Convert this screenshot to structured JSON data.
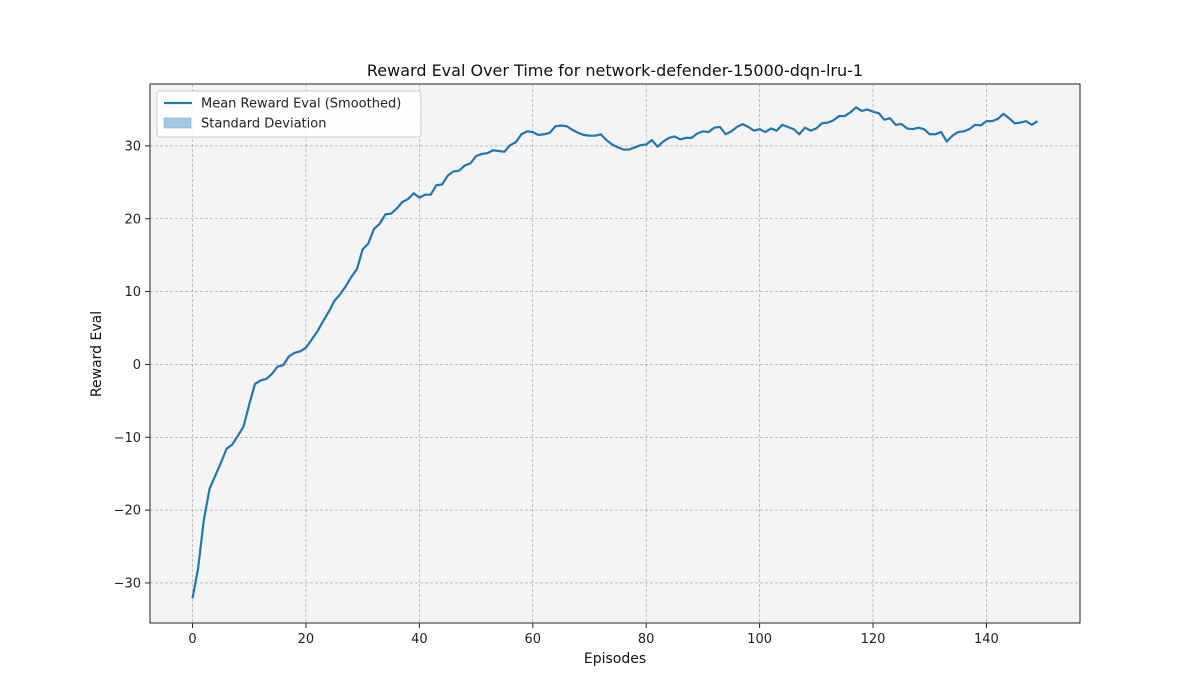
{
  "chart_data": {
    "type": "line",
    "title": "Reward Eval Over Time for network-defender-15000-dqn-lru-1",
    "xlabel": "Episodes",
    "ylabel": "Reward Eval",
    "xlim": [
      -7.5,
      156.5
    ],
    "ylim": [
      -35.5,
      38.5
    ],
    "xticks": [
      0,
      20,
      40,
      60,
      80,
      100,
      120,
      140
    ],
    "yticks": [
      -30,
      -20,
      -10,
      0,
      10,
      20,
      30
    ],
    "grid": true,
    "legend_position": "upper-left",
    "legend": [
      {
        "label": "Mean Reward Eval (Smoothed)",
        "kind": "line"
      },
      {
        "label": "Standard Deviation",
        "kind": "band"
      }
    ],
    "colors": {
      "line": "#1f77b4",
      "band": "#a6c8e0",
      "plot_bg": "#f4f4f4",
      "grid": "#9a9a9a"
    },
    "series": [
      {
        "name": "Mean Reward Eval (Smoothed)",
        "x": [
          0,
          1,
          2,
          3,
          4,
          5,
          6,
          7,
          8,
          9,
          10,
          11,
          12,
          13,
          14,
          15,
          16,
          17,
          18,
          19,
          20,
          21,
          22,
          23,
          24,
          25,
          26,
          27,
          28,
          29,
          30,
          31,
          32,
          33,
          34,
          35,
          36,
          37,
          38,
          39,
          40,
          41,
          42,
          43,
          44,
          45,
          46,
          47,
          48,
          49,
          50,
          51,
          52,
          53,
          54,
          55,
          56,
          57,
          58,
          59,
          60,
          61,
          62,
          63,
          64,
          65,
          66,
          67,
          68,
          69,
          70,
          71,
          72,
          73,
          74,
          75,
          76,
          77,
          78,
          79,
          80,
          81,
          82,
          83,
          84,
          85,
          86,
          87,
          88,
          89,
          90,
          91,
          92,
          93,
          94,
          95,
          96,
          97,
          98,
          99,
          100,
          101,
          102,
          103,
          104,
          105,
          106,
          107,
          108,
          109,
          110,
          111,
          112,
          113,
          114,
          115,
          116,
          117,
          118,
          119,
          120,
          121,
          122,
          123,
          124,
          125,
          126,
          127,
          128,
          129,
          130,
          131,
          132,
          133,
          134,
          135,
          136,
          137,
          138,
          139,
          140,
          141,
          142,
          143,
          144,
          145,
          146,
          147,
          148,
          149
        ],
        "y": [
          -32.1,
          -27.9,
          -21.3,
          -17.1,
          -15.3,
          -13.5,
          -11.6,
          -11.0,
          -9.8,
          -8.5,
          -5.5,
          -2.7,
          -2.2,
          -2.0,
          -1.3,
          -0.3,
          -0.1,
          1.1,
          1.6,
          1.8,
          2.3,
          3.4,
          4.5,
          5.9,
          7.2,
          8.7,
          9.6,
          10.7,
          12.0,
          13.1,
          15.8,
          16.6,
          18.6,
          19.3,
          20.6,
          20.7,
          21.4,
          22.3,
          22.7,
          23.5,
          22.9,
          23.3,
          23.3,
          24.6,
          24.7,
          25.9,
          26.5,
          26.6,
          27.3,
          27.6,
          28.6,
          28.9,
          29.0,
          29.4,
          29.3,
          29.2,
          30.1,
          30.5,
          31.6,
          32.0,
          31.9,
          31.5,
          31.6,
          31.8,
          32.7,
          32.8,
          32.7,
          32.2,
          31.8,
          31.5,
          31.4,
          31.4,
          31.6,
          30.8,
          30.2,
          29.8,
          29.5,
          29.5,
          29.8,
          30.1,
          30.2,
          30.8,
          29.9,
          30.6,
          31.1,
          31.3,
          30.9,
          31.1,
          31.1,
          31.7,
          32.0,
          31.9,
          32.5,
          32.6,
          31.6,
          32.0,
          32.6,
          33.0,
          32.6,
          32.1,
          32.3,
          31.9,
          32.4,
          32.1,
          32.9,
          32.6,
          32.3,
          31.6,
          32.5,
          32.1,
          32.4,
          33.1,
          33.2,
          33.5,
          34.1,
          34.1,
          34.6,
          35.3,
          34.8,
          35.0,
          34.7,
          34.5,
          33.6,
          33.8,
          32.9,
          33.0,
          32.4,
          32.3,
          32.5,
          32.3,
          31.6,
          31.6,
          31.9,
          30.6,
          31.4,
          31.9,
          32.0,
          32.3,
          32.9,
          32.8,
          33.4,
          33.4,
          33.7,
          34.4,
          33.8,
          33.1,
          33.2,
          33.4,
          32.9,
          33.4
        ]
      }
    ]
  }
}
